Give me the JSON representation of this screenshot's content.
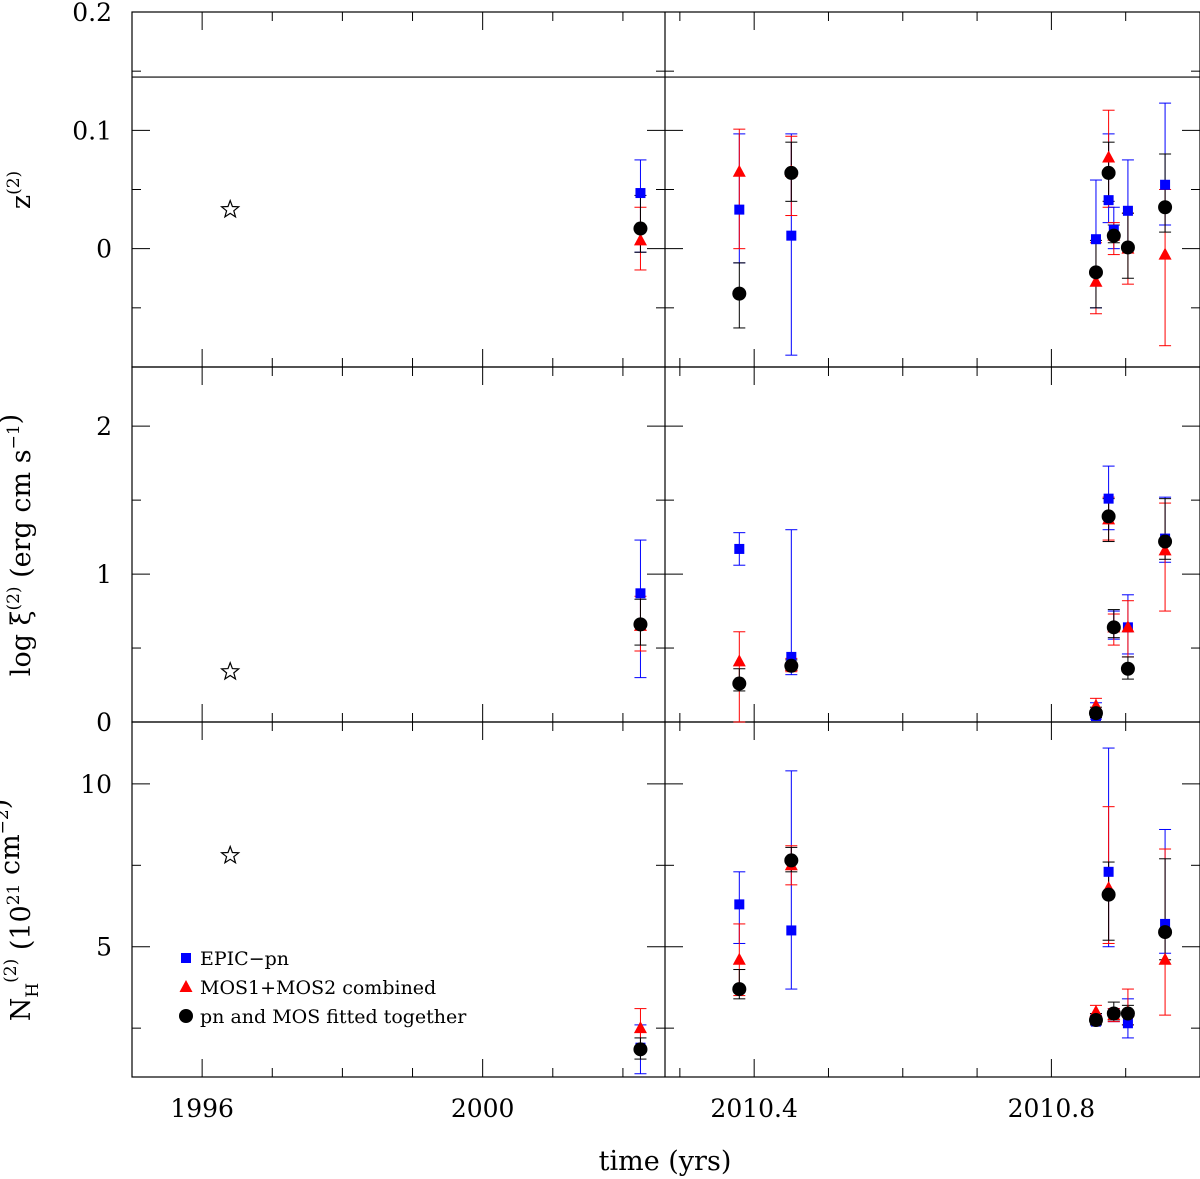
{
  "chart_data": {
    "type": "scatter",
    "xlabel": "time (yrs)",
    "x_ticks_left": [
      "1996",
      "2000"
    ],
    "x_ticks_right": [
      "2010.4",
      "2010.8"
    ],
    "x_range_left": [
      1995.0,
      2002.6
    ],
    "x_range_right": [
      2010.28,
      2011.0
    ],
    "legend": {
      "position": "bottom-left of lower panel",
      "entries": [
        {
          "series": "pn",
          "label": "EPIC−pn"
        },
        {
          "series": "mos",
          "label": "MOS1+MOS2 combined"
        },
        {
          "series": "joint",
          "label": "pn and MOS fitted together"
        }
      ]
    },
    "series_styles": {
      "pn": {
        "marker": "square",
        "color": "#0000ff"
      },
      "mos": {
        "marker": "triangle",
        "color": "#ff0000"
      },
      "joint": {
        "marker": "circle",
        "color": "#000000"
      },
      "ref": {
        "marker": "star",
        "color": "#000000"
      }
    },
    "panels": [
      {
        "id": "z",
        "ylabel_main": "z",
        "ylabel_sup": "(2)",
        "ylim": [
          -0.1,
          0.2
        ],
        "yticks": [
          0,
          0.1,
          0.2
        ],
        "ytick_labels": [
          "0",
          "0.1",
          "0.2"
        ],
        "minor_step": 0.05,
        "inset_line": 0.145,
        "ref": {
          "x": 1996.4,
          "y": 0.033
        },
        "left": [
          {
            "x": 2002.25,
            "pn": [
              0.047,
              -0.003,
              0.075
            ],
            "mos": [
              0.007,
              -0.018,
              0.035
            ],
            "joint": [
              0.017,
              -0.003,
              0.045
            ]
          }
        ],
        "right": [
          {
            "x": 2010.38,
            "pn": [
              0.033,
              -0.012,
              0.097
            ],
            "mos": [
              0.065,
              0.0,
              0.101
            ],
            "joint": [
              -0.038,
              -0.067,
              -0.012
            ]
          },
          {
            "x": 2010.45,
            "pn": [
              0.011,
              -0.09,
              0.097
            ],
            "mos": [
              0.065,
              0.028,
              0.095
            ],
            "joint": [
              0.064,
              0.04,
              0.09
            ]
          },
          {
            "x": 2010.86,
            "pn": [
              0.008,
              -0.05,
              0.058
            ],
            "mos": [
              -0.028,
              -0.055,
              0.005
            ],
            "joint": [
              -0.02,
              -0.05,
              0.007
            ]
          },
          {
            "x": 2010.877,
            "pn": [
              0.041,
              0.022,
              0.097
            ],
            "mos": [
              0.077,
              0.035,
              0.117
            ],
            "joint": [
              0.064,
              0.04,
              0.09
            ]
          },
          {
            "x": 2010.884,
            "pn": [
              0.016,
              0.0,
              0.035
            ],
            "mos": [
              0.011,
              -0.005,
              0.022
            ],
            "joint": [
              0.011,
              0.005,
              0.02
            ]
          },
          {
            "x": 2010.903,
            "pn": [
              0.032,
              0.0,
              0.075
            ],
            "mos": [
              0.0,
              -0.03,
              0.03
            ],
            "joint": [
              0.001,
              -0.025,
              0.03
            ]
          },
          {
            "x": 2010.953,
            "pn": [
              0.054,
              0.02,
              0.123
            ],
            "mos": [
              -0.005,
              -0.082,
              0.05
            ],
            "joint": [
              0.035,
              0.014,
              0.08
            ]
          }
        ]
      },
      {
        "id": "xi",
        "ylabel_main": "log ξ",
        "ylabel_sup": "(2)",
        "ylabel_tail": "(erg cm s",
        "ylabel_tail_sup": "−1",
        "ylabel_close": ")",
        "ylim": [
          0,
          2.4
        ],
        "yticks": [
          0,
          1,
          2
        ],
        "ytick_labels": [
          "0",
          "1",
          "2"
        ],
        "minor_step": 0.5,
        "ref": {
          "x": 1996.4,
          "y": 0.34
        },
        "left": [
          {
            "x": 2002.25,
            "pn": [
              0.87,
              0.3,
              1.23
            ],
            "mos": [
              0.65,
              0.48,
              0.85
            ],
            "joint": [
              0.66,
              0.52,
              0.83
            ]
          }
        ],
        "right": [
          {
            "x": 2010.38,
            "pn": [
              1.17,
              1.06,
              1.28
            ],
            "mos": [
              0.41,
              0.0,
              0.61
            ],
            "joint": [
              0.26,
              0.21,
              0.36
            ]
          },
          {
            "x": 2010.45,
            "pn": [
              0.44,
              0.32,
              1.3
            ],
            "mos": [
              0.38,
              0.34,
              0.43
            ],
            "joint": [
              0.38,
              0.35,
              0.42
            ]
          },
          {
            "x": 2010.86,
            "pn": [
              0.04,
              0.02,
              0.13
            ],
            "mos": [
              0.11,
              0.05,
              0.16
            ],
            "joint": [
              0.06,
              0.03,
              0.1
            ]
          },
          {
            "x": 2010.877,
            "pn": [
              1.51,
              1.3,
              1.73
            ],
            "mos": [
              1.37,
              1.23,
              1.52
            ],
            "joint": [
              1.39,
              1.22,
              1.51
            ]
          },
          {
            "x": 2010.884,
            "pn": [
              0.64,
              0.56,
              0.75
            ],
            "mos": [
              0.64,
              0.52,
              0.73
            ],
            "joint": [
              0.64,
              0.57,
              0.76
            ]
          },
          {
            "x": 2010.903,
            "pn": [
              0.64,
              0.46,
              0.86
            ],
            "mos": [
              0.64,
              0.44,
              0.82
            ],
            "joint": [
              0.36,
              0.29,
              0.44
            ]
          },
          {
            "x": 2010.953,
            "pn": [
              1.24,
              1.08,
              1.52
            ],
            "mos": [
              1.16,
              0.75,
              1.48
            ],
            "joint": [
              1.22,
              1.1,
              1.51
            ]
          }
        ]
      },
      {
        "id": "nh",
        "ylabel_main": "N",
        "ylabel_sub": "H",
        "ylabel_sup": "(2)",
        "ylabel_tail": "(10",
        "ylabel_tail_sup": "21",
        "ylabel_tail2": " cm",
        "ylabel_tail2_sup": "−2",
        "ylabel_close": ")",
        "ylim": [
          1.0,
          11.9
        ],
        "yticks": [
          5,
          10
        ],
        "ytick_labels": [
          "5",
          "10"
        ],
        "minor_step": 2.5,
        "ref": {
          "x": 1996.4,
          "y": 7.8
        },
        "left": [
          {
            "x": 2002.25,
            "pn": [
              1.9,
              1.1,
              2.6
            ],
            "mos": [
              2.5,
              1.9,
              3.1
            ],
            "joint": [
              1.85,
              1.55,
              2.2
            ]
          }
        ],
        "right": [
          {
            "x": 2010.38,
            "pn": [
              6.3,
              5.1,
              7.3
            ],
            "mos": [
              4.6,
              3.5,
              5.7
            ],
            "joint": [
              3.7,
              3.4,
              4.3
            ]
          },
          {
            "x": 2010.45,
            "pn": [
              5.5,
              3.7,
              10.4
            ],
            "mos": [
              7.5,
              6.9,
              8.1
            ],
            "joint": [
              7.65,
              7.3,
              8.05
            ]
          },
          {
            "x": 2010.86,
            "pn": [
              2.7,
              2.6,
              2.9
            ],
            "mos": [
              3.0,
              2.7,
              3.2
            ],
            "joint": [
              2.75,
              2.6,
              2.95
            ]
          },
          {
            "x": 2010.877,
            "pn": [
              7.3,
              5.0,
              11.1
            ],
            "mos": [
              6.8,
              5.1,
              9.3
            ],
            "joint": [
              6.6,
              5.2,
              7.6
            ]
          },
          {
            "x": 2010.884,
            "pn": [
              2.9,
              2.7,
              3.1
            ],
            "mos": [
              2.9,
              2.7,
              3.1
            ],
            "joint": [
              2.95,
              2.75,
              3.3
            ]
          },
          {
            "x": 2010.903,
            "pn": [
              2.65,
              2.2,
              3.4
            ],
            "mos": [
              3.0,
              2.6,
              3.7
            ],
            "joint": [
              2.95,
              2.6,
              3.2
            ]
          },
          {
            "x": 2010.953,
            "pn": [
              5.7,
              4.8,
              8.6
            ],
            "mos": [
              4.6,
              2.9,
              8.0
            ],
            "joint": [
              5.45,
              4.6,
              7.7
            ]
          }
        ]
      }
    ]
  }
}
